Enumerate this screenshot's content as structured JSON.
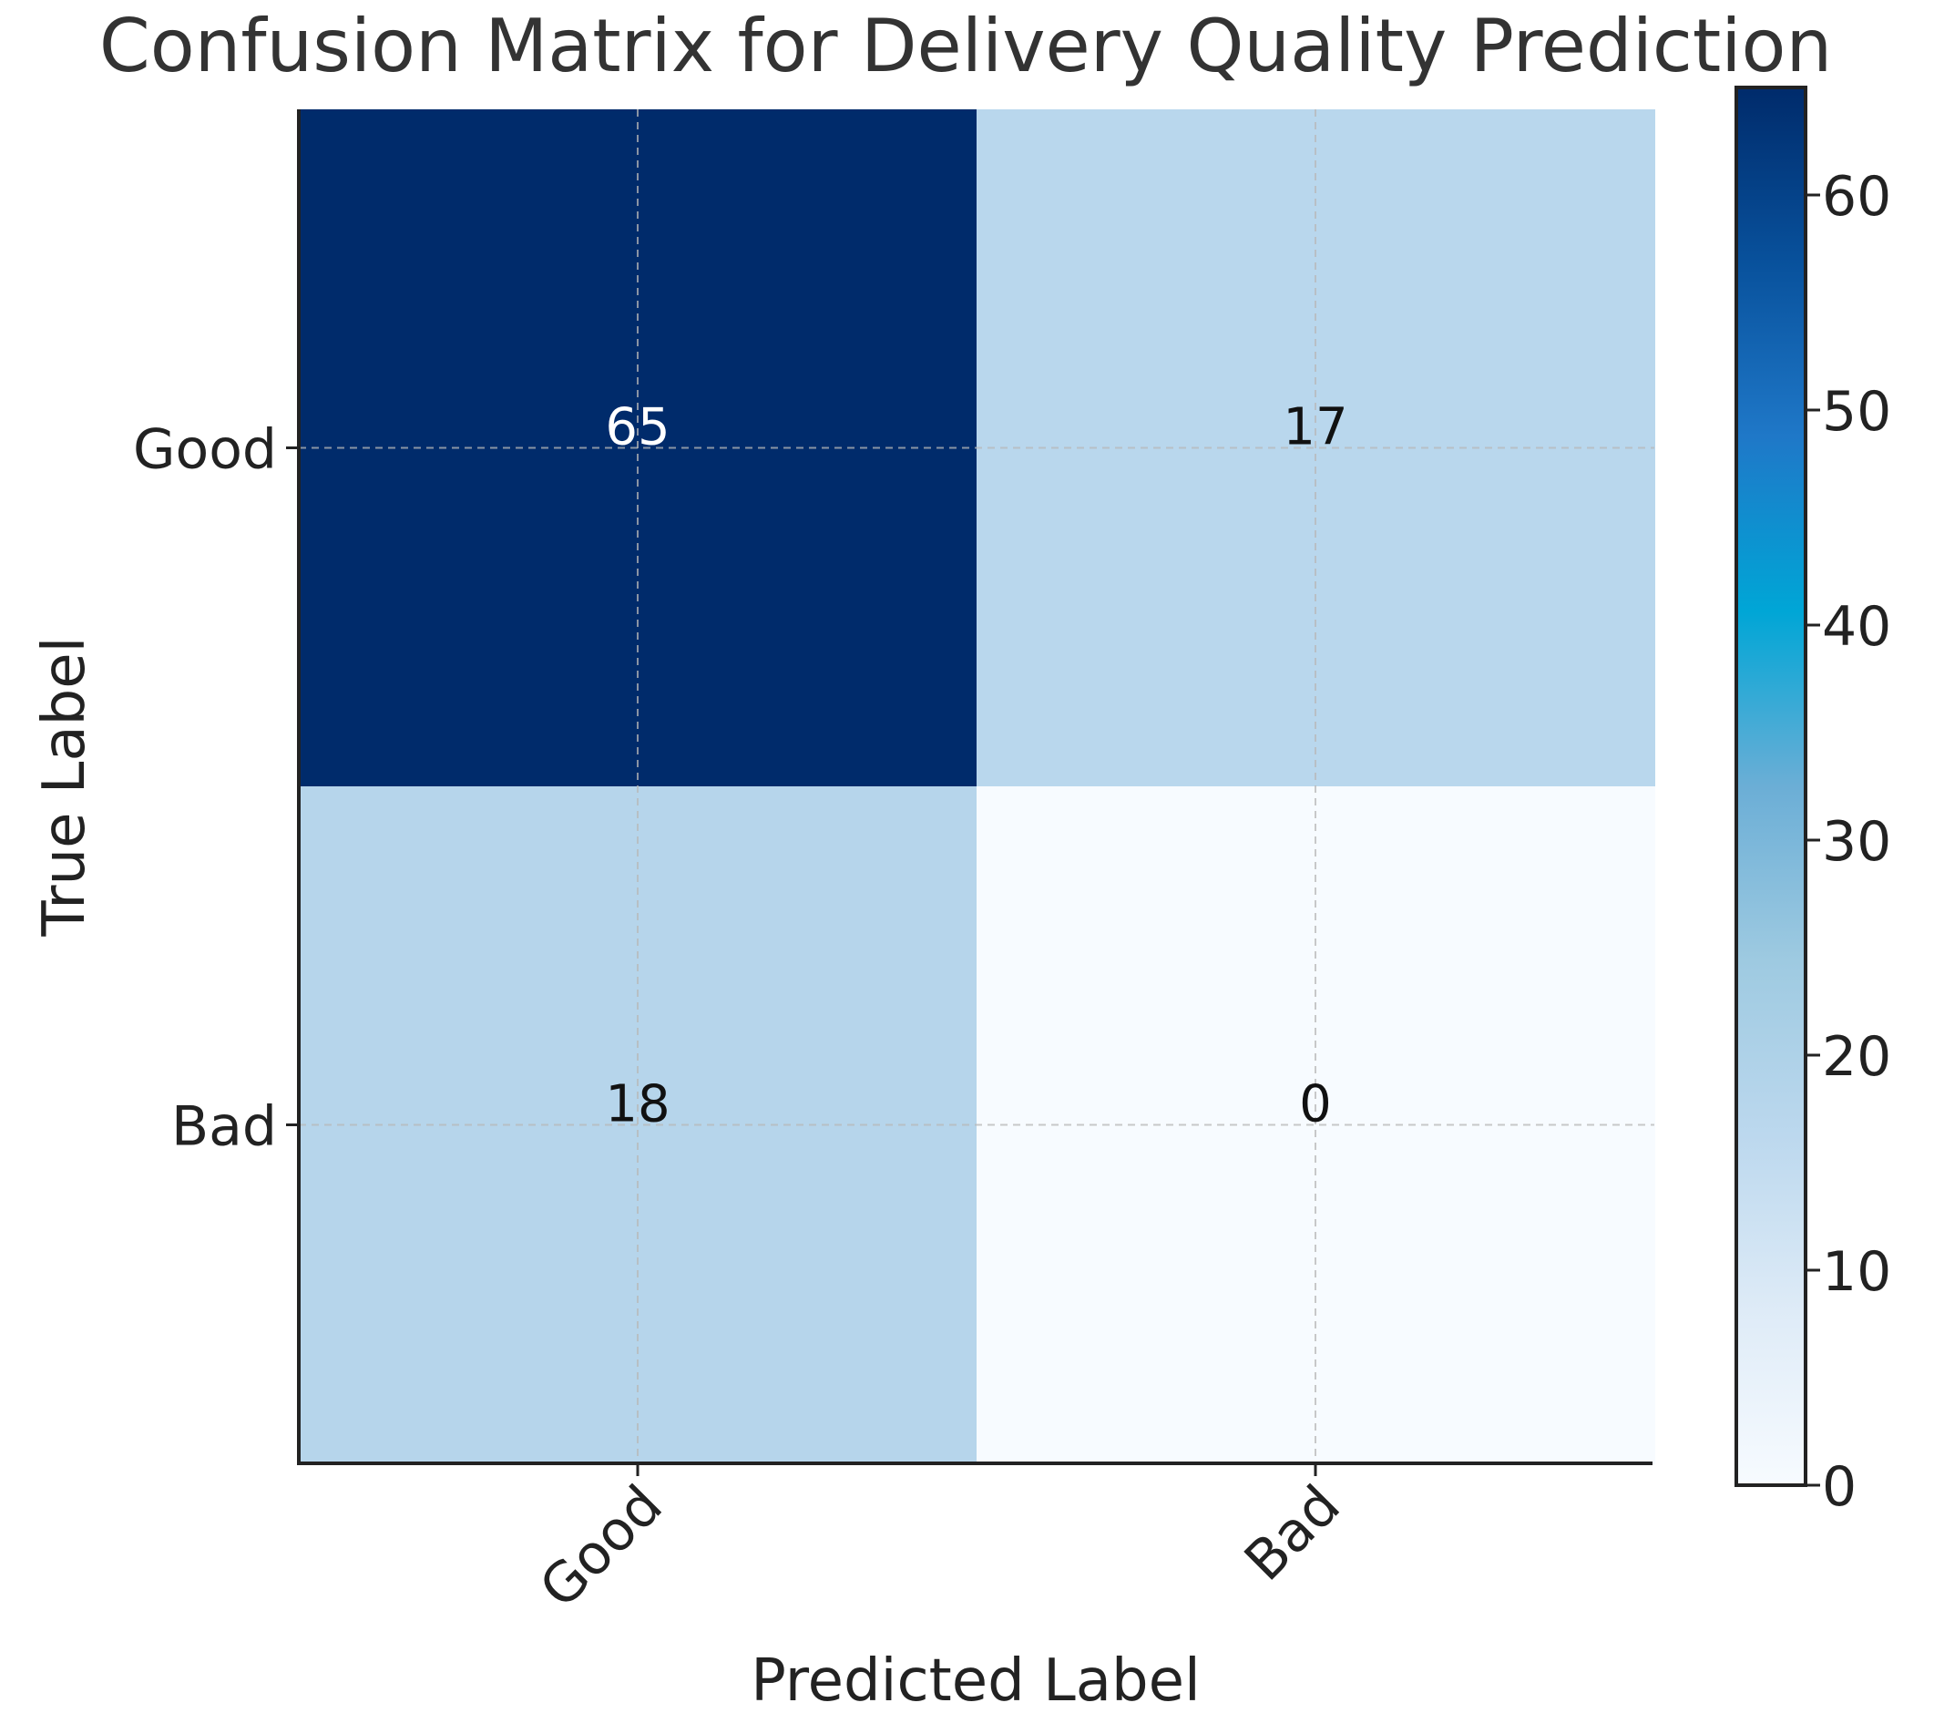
{
  "chart_data": {
    "type": "heatmap",
    "title": "Confusion Matrix for Delivery Quality Prediction",
    "xlabel": "Predicted Label",
    "ylabel": "True Label",
    "x_categories": [
      "Good",
      "Bad"
    ],
    "y_categories": [
      "Good",
      "Bad"
    ],
    "values": [
      [
        65,
        17
      ],
      [
        18,
        0
      ]
    ],
    "colorbar": {
      "range": [
        0,
        65
      ],
      "ticks": [
        0,
        10,
        20,
        30,
        40,
        50,
        60
      ],
      "colormap": [
        "#f7fbff",
        "#deebf7",
        "#bcd8ee",
        "#9ecae1",
        "#6baed6",
        "#00a6d6",
        "#1f78c8",
        "#08519c",
        "#002b6b"
      ]
    },
    "grid": true,
    "label_colors": {
      "dark_cell": "#ffffff",
      "light_cell": "#111111"
    }
  }
}
